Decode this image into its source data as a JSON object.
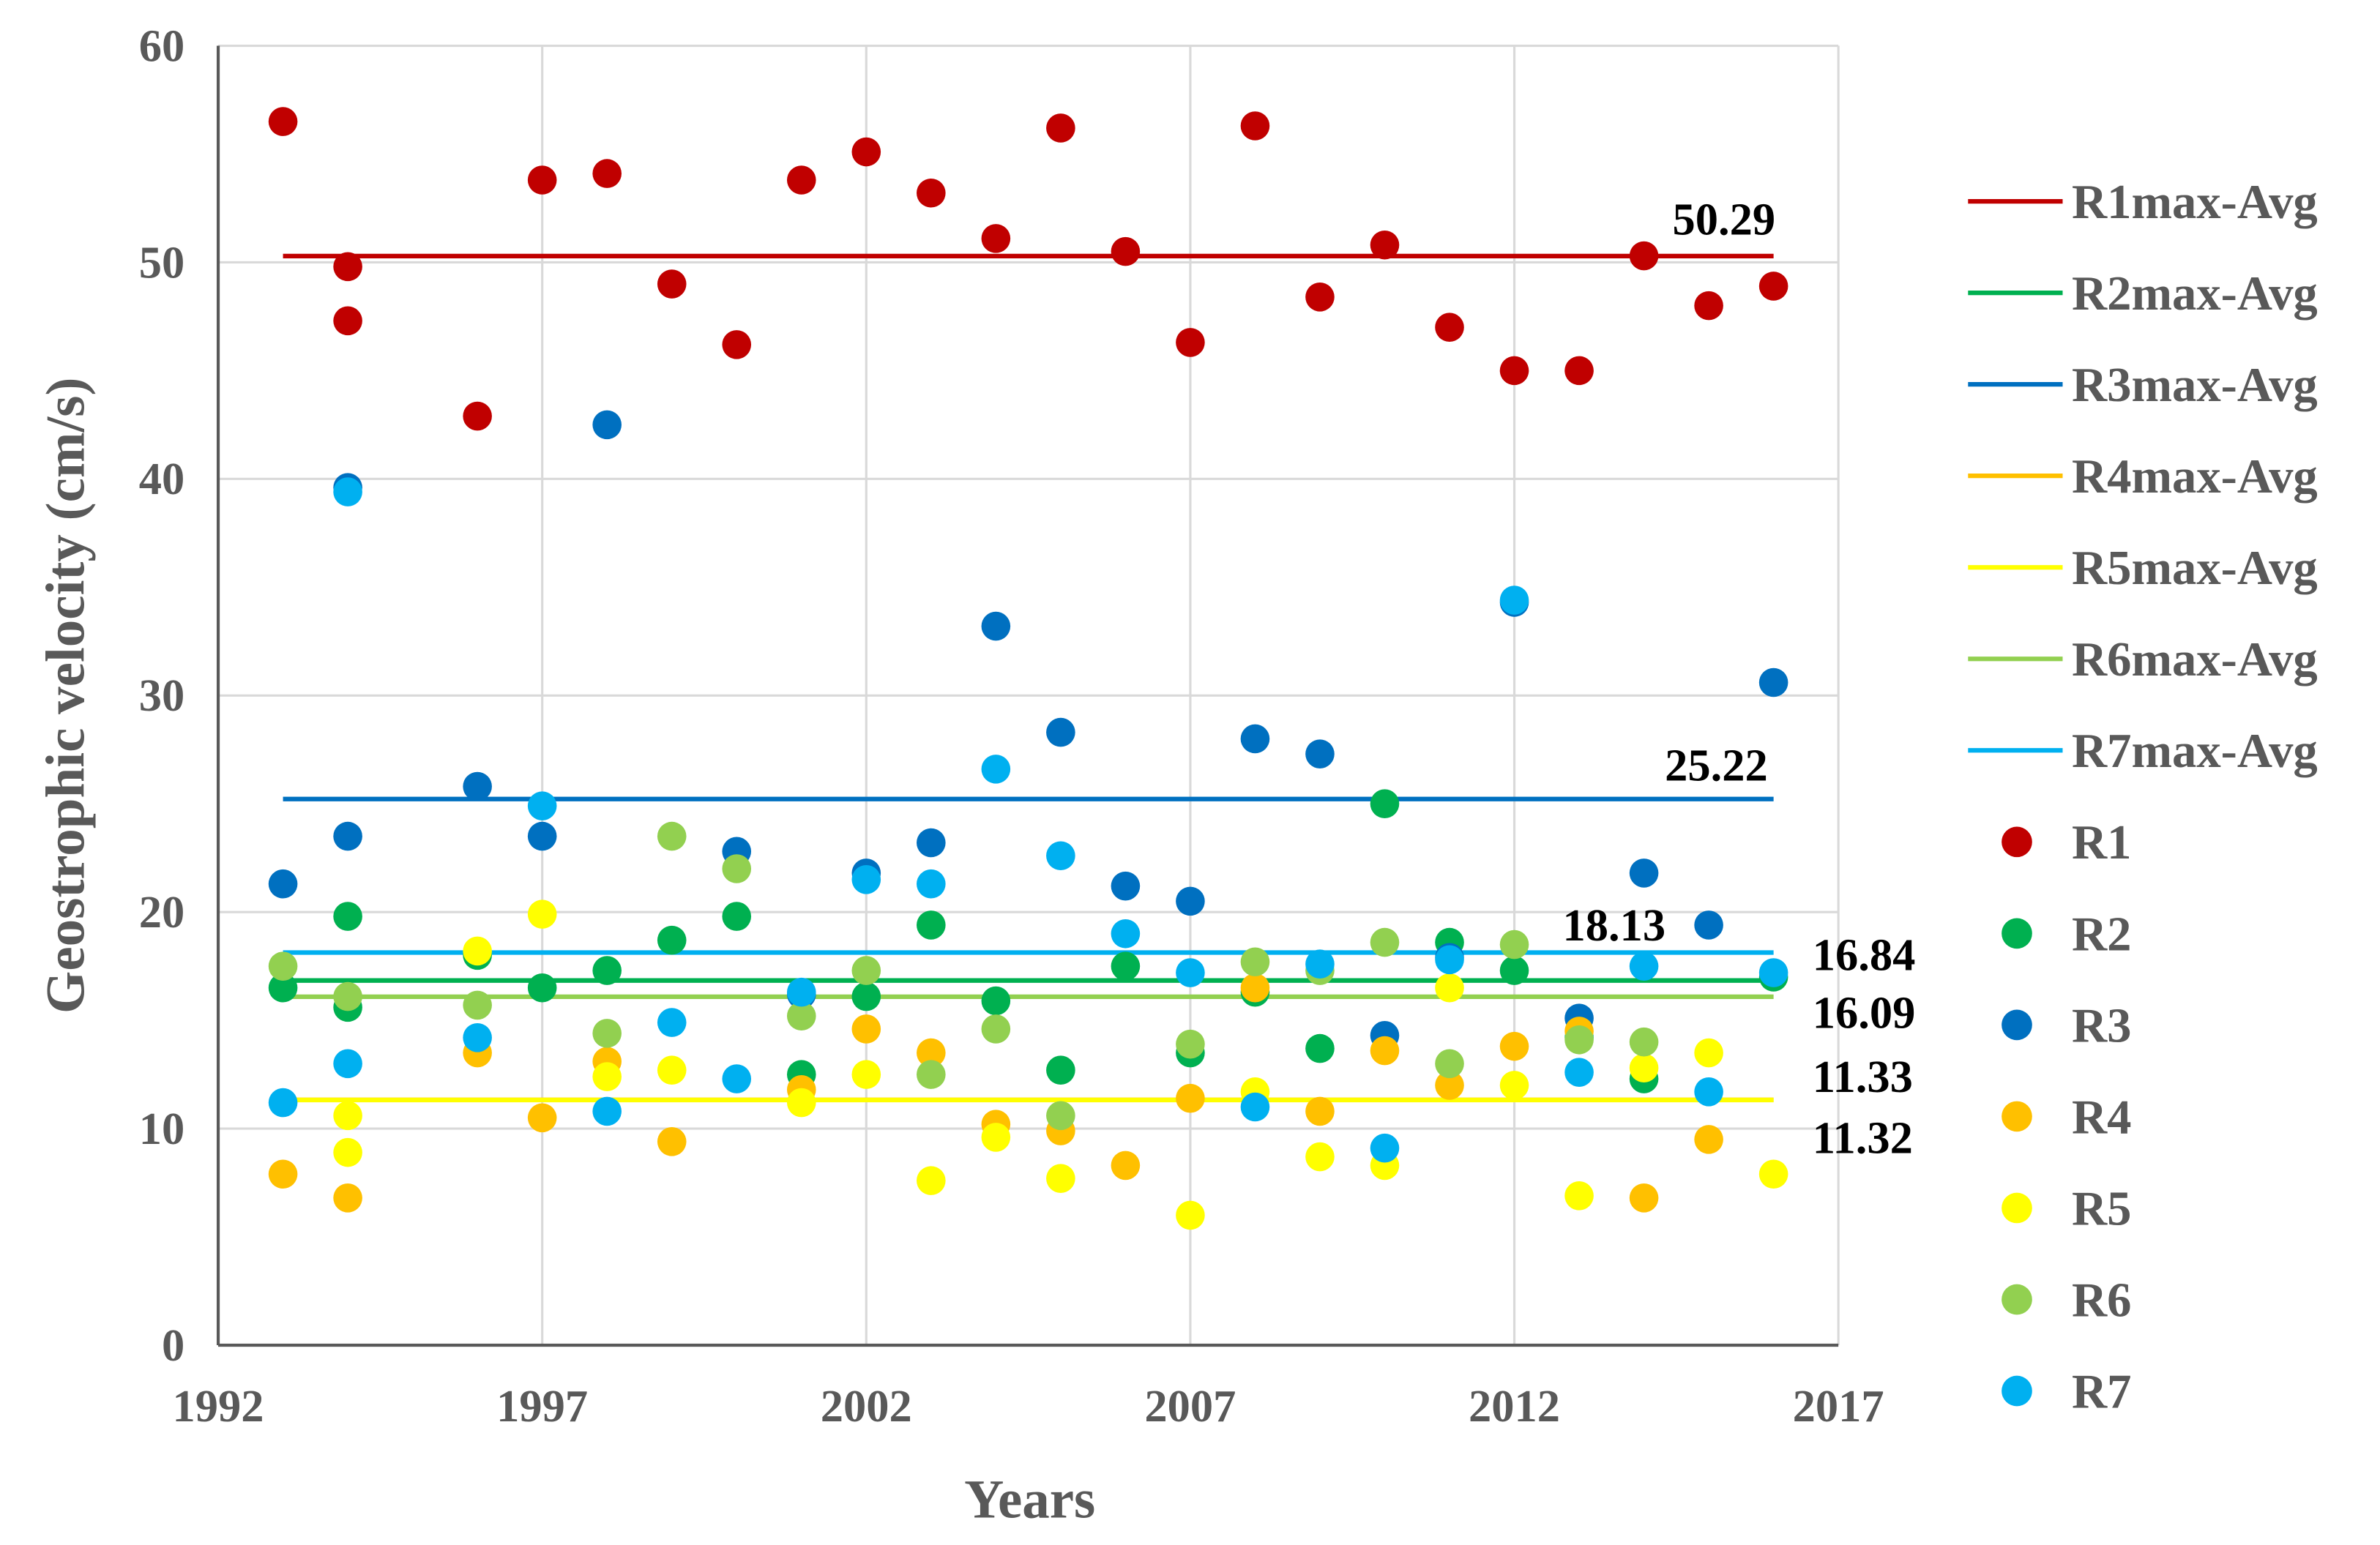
{
  "chart_data": {
    "type": "scatter",
    "title": "",
    "xlabel": "Years",
    "ylabel": "Geostrophic velocity (cm/s)",
    "xlim": [
      1992,
      2017
    ],
    "ylim": [
      0,
      60
    ],
    "xticks": [
      1992,
      1997,
      2002,
      2007,
      2012,
      2017
    ],
    "yticks": [
      0,
      10,
      20,
      30,
      40,
      50,
      60
    ],
    "grid": true,
    "legend_position": "right",
    "avg_lines": [
      {
        "name": "R1max-Avg",
        "value": 50.29,
        "label": "50.29",
        "color": "#C00000",
        "x_range": [
          1993,
          2016
        ]
      },
      {
        "name": "R2max-Avg",
        "value": 16.84,
        "label": "16.84",
        "color": "#00B050",
        "x_range": [
          1993,
          2016
        ]
      },
      {
        "name": "R3max-Avg",
        "value": 25.22,
        "label": "25.22",
        "color": "#0070C0",
        "x_range": [
          1993,
          2016
        ]
      },
      {
        "name": "R4max-Avg",
        "value": 11.33,
        "label": "11.33",
        "color": "#FFC000",
        "x_range": [
          1993,
          2016
        ]
      },
      {
        "name": "R5max-Avg",
        "value": 11.32,
        "label": "11.32",
        "color": "#FFFF00",
        "x_range": [
          1993,
          2016
        ]
      },
      {
        "name": "R6max-Avg",
        "value": 16.09,
        "label": "16.09",
        "color": "#92D050",
        "x_range": [
          1993,
          2016
        ]
      },
      {
        "name": "R7max-Avg",
        "value": 18.13,
        "label": "18.13",
        "color": "#00B0F0",
        "x_range": [
          1993,
          2016
        ]
      }
    ],
    "series": [
      {
        "name": "R1",
        "color": "#C00000",
        "points": [
          [
            1993,
            56.5
          ],
          [
            1994,
            49.8
          ],
          [
            1994,
            47.3
          ],
          [
            1996,
            42.9
          ],
          [
            1997,
            53.8
          ],
          [
            1998,
            54.1
          ],
          [
            1999,
            49.0
          ],
          [
            2000,
            46.2
          ],
          [
            2001,
            53.8
          ],
          [
            2002,
            55.1
          ],
          [
            2003,
            53.2
          ],
          [
            2004,
            51.1
          ],
          [
            2005,
            56.2
          ],
          [
            2006,
            50.5
          ],
          [
            2007,
            46.3
          ],
          [
            2008,
            56.3
          ],
          [
            2009,
            48.4
          ],
          [
            2010,
            50.8
          ],
          [
            2011,
            47.0
          ],
          [
            2012,
            45.0
          ],
          [
            2013,
            45.0
          ],
          [
            2014,
            50.3
          ],
          [
            2015,
            48.0
          ],
          [
            2016,
            48.9
          ]
        ]
      },
      {
        "name": "R2",
        "color": "#00B050",
        "points": [
          [
            1993,
            16.5
          ],
          [
            1994,
            19.8
          ],
          [
            1994,
            15.6
          ],
          [
            1996,
            18.0
          ],
          [
            1997,
            16.5
          ],
          [
            1998,
            17.3
          ],
          [
            1999,
            18.7
          ],
          [
            2000,
            19.8
          ],
          [
            2001,
            12.5
          ],
          [
            2002,
            16.1
          ],
          [
            2003,
            19.4
          ],
          [
            2004,
            15.9
          ],
          [
            2005,
            12.7
          ],
          [
            2006,
            17.5
          ],
          [
            2007,
            13.5
          ],
          [
            2008,
            16.3
          ],
          [
            2009,
            13.7
          ],
          [
            2010,
            25.0
          ],
          [
            2011,
            18.6
          ],
          [
            2012,
            17.3
          ],
          [
            2013,
            14.2
          ],
          [
            2014,
            12.3
          ],
          [
            2016,
            17.0
          ]
        ]
      },
      {
        "name": "R3",
        "color": "#0070C0",
        "points": [
          [
            1993,
            21.3
          ],
          [
            1994,
            23.5
          ],
          [
            1994,
            39.6
          ],
          [
            1996,
            25.8
          ],
          [
            1997,
            23.5
          ],
          [
            1998,
            42.5
          ],
          [
            2000,
            22.8
          ],
          [
            2001,
            16.2
          ],
          [
            2002,
            21.8
          ],
          [
            2003,
            23.2
          ],
          [
            2004,
            33.2
          ],
          [
            2005,
            28.3
          ],
          [
            2006,
            21.2
          ],
          [
            2007,
            20.5
          ],
          [
            2008,
            28.0
          ],
          [
            2009,
            27.3
          ],
          [
            2010,
            14.3
          ],
          [
            2011,
            17.9
          ],
          [
            2012,
            34.3
          ],
          [
            2013,
            15.1
          ],
          [
            2014,
            21.8
          ],
          [
            2015,
            19.4
          ],
          [
            2016,
            30.6
          ]
        ]
      },
      {
        "name": "R4",
        "color": "#FFC000",
        "points": [
          [
            1993,
            7.9
          ],
          [
            1994,
            6.8
          ],
          [
            1996,
            13.5
          ],
          [
            1997,
            10.5
          ],
          [
            1998,
            13.1
          ],
          [
            1999,
            9.4
          ],
          [
            2001,
            11.8
          ],
          [
            2002,
            14.6
          ],
          [
            2003,
            13.5
          ],
          [
            2004,
            10.2
          ],
          [
            2005,
            9.9
          ],
          [
            2006,
            8.3
          ],
          [
            2007,
            11.4
          ],
          [
            2008,
            16.5
          ],
          [
            2009,
            10.8
          ],
          [
            2010,
            13.6
          ],
          [
            2011,
            12.0
          ],
          [
            2012,
            13.8
          ],
          [
            2013,
            14.5
          ],
          [
            2014,
            6.8
          ],
          [
            2015,
            9.5
          ]
        ]
      },
      {
        "name": "R5",
        "color": "#FFFF00",
        "points": [
          [
            1994,
            10.6
          ],
          [
            1994,
            8.9
          ],
          [
            1996,
            18.2
          ],
          [
            1997,
            19.9
          ],
          [
            1998,
            12.4
          ],
          [
            1999,
            12.7
          ],
          [
            2001,
            11.2
          ],
          [
            2002,
            12.5
          ],
          [
            2003,
            7.6
          ],
          [
            2004,
            9.6
          ],
          [
            2005,
            7.7
          ],
          [
            2007,
            6.0
          ],
          [
            2008,
            11.7
          ],
          [
            2009,
            8.7
          ],
          [
            2010,
            8.3
          ],
          [
            2011,
            16.5
          ],
          [
            2012,
            12.0
          ],
          [
            2013,
            6.9
          ],
          [
            2014,
            12.8
          ],
          [
            2015,
            13.5
          ],
          [
            2016,
            7.9
          ]
        ]
      },
      {
        "name": "R6",
        "color": "#92D050",
        "points": [
          [
            1993,
            17.5
          ],
          [
            1994,
            16.1
          ],
          [
            1996,
            15.7
          ],
          [
            1998,
            14.4
          ],
          [
            1999,
            23.5
          ],
          [
            2000,
            22.0
          ],
          [
            2001,
            15.2
          ],
          [
            2002,
            17.3
          ],
          [
            2003,
            12.5
          ],
          [
            2004,
            14.6
          ],
          [
            2005,
            10.6
          ],
          [
            2007,
            13.9
          ],
          [
            2008,
            17.7
          ],
          [
            2009,
            17.3
          ],
          [
            2010,
            18.6
          ],
          [
            2011,
            13.0
          ],
          [
            2012,
            18.5
          ],
          [
            2013,
            14.1
          ],
          [
            2014,
            14.0
          ]
        ]
      },
      {
        "name": "R7",
        "color": "#00B0F0",
        "points": [
          [
            1993,
            11.2
          ],
          [
            1994,
            39.4
          ],
          [
            1994,
            13.0
          ],
          [
            1996,
            14.2
          ],
          [
            1997,
            24.9
          ],
          [
            1998,
            10.8
          ],
          [
            1999,
            14.9
          ],
          [
            2000,
            12.3
          ],
          [
            2001,
            16.3
          ],
          [
            2002,
            21.5
          ],
          [
            2003,
            21.3
          ],
          [
            2004,
            26.6
          ],
          [
            2005,
            22.6
          ],
          [
            2006,
            19.0
          ],
          [
            2007,
            17.2
          ],
          [
            2008,
            11.0
          ],
          [
            2009,
            17.6
          ],
          [
            2010,
            9.1
          ],
          [
            2011,
            17.8
          ],
          [
            2012,
            34.4
          ],
          [
            2013,
            12.6
          ],
          [
            2014,
            17.5
          ],
          [
            2015,
            11.7
          ],
          [
            2016,
            17.2
          ]
        ]
      }
    ]
  }
}
